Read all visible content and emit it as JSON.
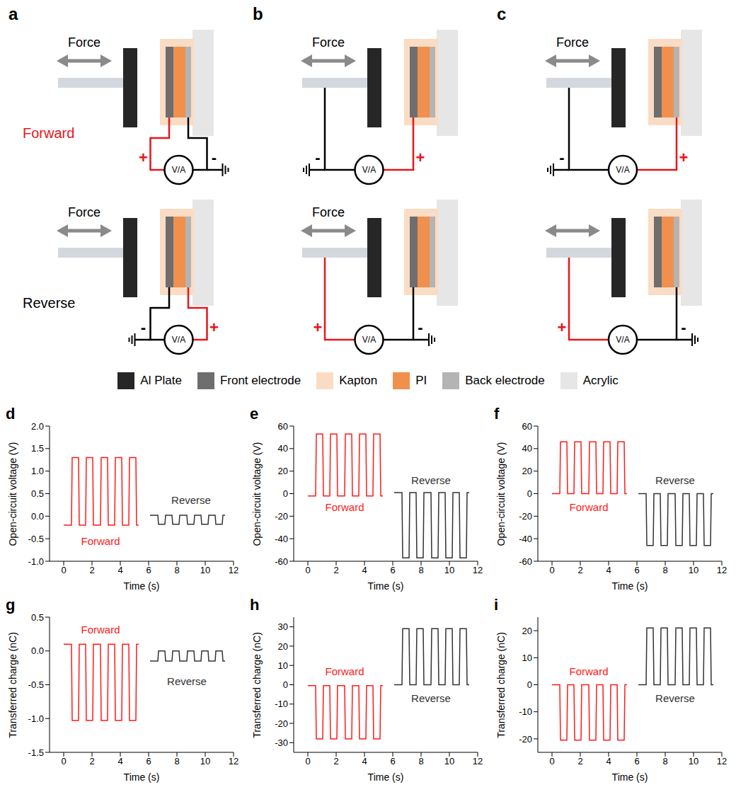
{
  "diagram": {
    "meter": "V/A",
    "plus": "+",
    "minus": "-",
    "panels": [
      {
        "letter": "a",
        "rows": [
          {
            "label": "Forward",
            "color": "#e8151b",
            "force": "Force",
            "plus": "Front electrode",
            "minus": "Back electrode"
          },
          {
            "label": "Reverse",
            "color": "#000000",
            "force": "Force",
            "plus": "Back electrode",
            "minus": "Front electrode"
          }
        ]
      },
      {
        "letter": "b",
        "rows": [
          {
            "force": "Force",
            "plus": "Front electrode",
            "minus": "Al Plate"
          },
          {
            "force": "Force",
            "plus": "Al Plate",
            "minus": "Front electrode"
          }
        ]
      },
      {
        "letter": "c",
        "rows": [
          {
            "force": "Force",
            "plus": "Back electrode",
            "minus": "Al Plate"
          },
          {
            "force": null,
            "plus": "Al Plate",
            "minus": "Back electrode"
          }
        ]
      }
    ],
    "legend": [
      {
        "label": "Al Plate",
        "color": "#262626"
      },
      {
        "label": "Front electrode",
        "color": "#6e6e6e"
      },
      {
        "label": "Kapton",
        "color": "#fadcc4"
      },
      {
        "label": "PI",
        "color": "#f0904c"
      },
      {
        "label": "Back electrode",
        "color": "#b4b4b4"
      },
      {
        "label": "Acrylic",
        "color": "#e6e6e6"
      }
    ]
  },
  "chart_data": [
    {
      "type": "line",
      "panel": "d",
      "xlabel": "Time (s)",
      "ylabel": "Open-circuit voltage (V)",
      "xlim": [
        -1,
        12
      ],
      "xticks": [
        0,
        2,
        4,
        6,
        8,
        10,
        12
      ],
      "ylim": [
        -1,
        2
      ],
      "yticks": [
        {
          "value": -1,
          "label": "-1.0"
        },
        {
          "value": -0.5,
          "label": "-0.5"
        },
        {
          "value": 0,
          "label": "0.0"
        },
        {
          "value": 0.5,
          "label": "0.5"
        },
        {
          "value": 1,
          "label": "1.0"
        },
        {
          "value": 1.5,
          "label": "1.5"
        },
        {
          "value": 2,
          "label": "2.0"
        }
      ],
      "series": [
        {
          "name": "Forward",
          "color": "#ff1a1a",
          "label_x": 2.6,
          "label_y": -0.55,
          "x": [
            0,
            0.55,
            0.6,
            1.05,
            1.1,
            1.55,
            1.6,
            2.05,
            2.1,
            2.6,
            2.65,
            3.1,
            3.15,
            3.6,
            3.65,
            4.1,
            4.15,
            4.6,
            4.65,
            5.1,
            5.15,
            5.3
          ],
          "values": [
            -0.2,
            -0.2,
            1.3,
            1.3,
            -0.2,
            -0.2,
            1.3,
            1.3,
            -0.2,
            -0.2,
            1.3,
            1.3,
            -0.2,
            -0.2,
            1.3,
            1.3,
            -0.2,
            -0.2,
            1.3,
            1.3,
            -0.2,
            -0.2
          ]
        },
        {
          "name": "Reverse",
          "color": "#333333",
          "label_x": 9,
          "label_y": 0.35,
          "x": [
            6.1,
            6.65,
            6.7,
            7.15,
            7.2,
            7.65,
            7.7,
            8.15,
            8.2,
            8.7,
            8.75,
            9.2,
            9.25,
            9.7,
            9.75,
            10.2,
            10.25,
            10.7,
            10.75,
            11.2,
            11.25,
            11.4
          ],
          "values": [
            0.02,
            0.02,
            -0.18,
            -0.18,
            0.02,
            0.02,
            -0.18,
            -0.18,
            0.02,
            0.02,
            -0.18,
            -0.18,
            0.02,
            0.02,
            -0.18,
            -0.18,
            0.02,
            0.02,
            -0.18,
            -0.18,
            0.02,
            0.02
          ]
        }
      ]
    },
    {
      "type": "line",
      "panel": "e",
      "xlabel": "Time (s)",
      "ylabel": "Open-circuit voltage (V)",
      "xlim": [
        -1,
        12
      ],
      "xticks": [
        0,
        2,
        4,
        6,
        8,
        10,
        12
      ],
      "ylim": [
        -60,
        60
      ],
      "yticks": [
        -60,
        -40,
        -20,
        0,
        20,
        40,
        60
      ],
      "series": [
        {
          "name": "Forward",
          "color": "#ff1a1a",
          "label_x": 2.6,
          "label_y": -12,
          "x": [
            0,
            0.55,
            0.6,
            1.05,
            1.1,
            1.55,
            1.6,
            2.05,
            2.1,
            2.6,
            2.65,
            3.1,
            3.15,
            3.6,
            3.65,
            4.1,
            4.15,
            4.6,
            4.65,
            5.1,
            5.15,
            5.3
          ],
          "values": [
            -2,
            -2,
            53,
            53,
            -2,
            -2,
            53,
            53,
            -2,
            -2,
            53,
            53,
            -2,
            -2,
            53,
            53,
            -2,
            -2,
            53,
            53,
            -2,
            -2
          ]
        },
        {
          "name": "Reverse",
          "color": "#333333",
          "label_x": 8.7,
          "label_y": 12,
          "x": [
            6.1,
            6.65,
            6.7,
            7.15,
            7.2,
            7.65,
            7.7,
            8.15,
            8.2,
            8.7,
            8.75,
            9.2,
            9.25,
            9.7,
            9.75,
            10.2,
            10.25,
            10.7,
            10.75,
            11.2,
            11.25,
            11.4
          ],
          "values": [
            1,
            1,
            -57,
            -57,
            1,
            1,
            -57,
            -57,
            1,
            1,
            -57,
            -57,
            1,
            1,
            -57,
            -57,
            1,
            1,
            -57,
            -57,
            1,
            1
          ]
        }
      ]
    },
    {
      "type": "line",
      "panel": "f",
      "xlabel": "Time (s)",
      "ylabel": "Open-circuit voltage (V)",
      "xlim": [
        -1,
        12
      ],
      "xticks": [
        0,
        2,
        4,
        6,
        8,
        10,
        12
      ],
      "ylim": [
        -60,
        60
      ],
      "yticks": [
        -60,
        -40,
        -20,
        0,
        20,
        40,
        60
      ],
      "series": [
        {
          "name": "Forward",
          "color": "#ff1a1a",
          "label_x": 2.6,
          "label_y": -12,
          "x": [
            0,
            0.55,
            0.6,
            1.05,
            1.1,
            1.55,
            1.6,
            2.05,
            2.1,
            2.6,
            2.65,
            3.1,
            3.15,
            3.6,
            3.65,
            4.1,
            4.15,
            4.6,
            4.65,
            5.1,
            5.15,
            5.3
          ],
          "values": [
            0,
            0,
            46,
            46,
            0,
            0,
            46,
            46,
            0,
            0,
            46,
            46,
            0,
            0,
            46,
            46,
            0,
            0,
            46,
            46,
            0,
            0
          ]
        },
        {
          "name": "Reverse",
          "color": "#333333",
          "label_x": 8.7,
          "label_y": 12,
          "x": [
            6.1,
            6.65,
            6.7,
            7.15,
            7.2,
            7.65,
            7.7,
            8.15,
            8.2,
            8.7,
            8.75,
            9.2,
            9.25,
            9.7,
            9.75,
            10.2,
            10.25,
            10.7,
            10.75,
            11.2,
            11.25,
            11.4
          ],
          "values": [
            0,
            0,
            -46,
            -46,
            0,
            0,
            -46,
            -46,
            0,
            0,
            -46,
            -46,
            0,
            0,
            -46,
            -46,
            0,
            0,
            -46,
            -46,
            0,
            0
          ]
        }
      ]
    },
    {
      "type": "line",
      "panel": "g",
      "xlabel": "Time (s)",
      "ylabel": "Transferred charge (nC)",
      "xlim": [
        -1,
        12
      ],
      "xticks": [
        0,
        2,
        4,
        6,
        8,
        10,
        12
      ],
      "ylim": [
        -1.5,
        0.5
      ],
      "yticks": [
        {
          "value": -1.5,
          "label": "-1.5"
        },
        {
          "value": -1,
          "label": "-1.0"
        },
        {
          "value": -0.5,
          "label": "-0.5"
        },
        {
          "value": 0,
          "label": "0.0"
        },
        {
          "value": 0.5,
          "label": "0.5"
        }
      ],
      "series": [
        {
          "name": "Forward",
          "color": "#ff1a1a",
          "label_x": 2.6,
          "label_y": 0.32,
          "x": [
            0,
            0.55,
            0.6,
            1.05,
            1.1,
            1.55,
            1.6,
            2.05,
            2.1,
            2.6,
            2.65,
            3.1,
            3.15,
            3.6,
            3.65,
            4.1,
            4.15,
            4.6,
            4.65,
            5.1,
            5.15,
            5.3
          ],
          "values": [
            0.1,
            0.1,
            -1.03,
            -1.03,
            0.1,
            0.1,
            -1.03,
            -1.03,
            0.1,
            0.1,
            -1.03,
            -1.03,
            0.1,
            0.1,
            -1.03,
            -1.03,
            0.1,
            0.1,
            -1.03,
            -1.03,
            0.1,
            0.1
          ]
        },
        {
          "name": "Reverse",
          "color": "#333333",
          "label_x": 8.7,
          "label_y": -0.45,
          "x": [
            6.1,
            6.65,
            6.7,
            7.15,
            7.2,
            7.65,
            7.7,
            8.15,
            8.2,
            8.7,
            8.75,
            9.2,
            9.25,
            9.7,
            9.75,
            10.2,
            10.25,
            10.7,
            10.75,
            11.2,
            11.25,
            11.4
          ],
          "values": [
            -0.15,
            -0.15,
            0,
            0,
            -0.15,
            -0.15,
            0,
            0,
            -0.15,
            -0.15,
            0,
            0,
            -0.15,
            -0.15,
            0,
            0,
            -0.15,
            -0.15,
            0,
            0,
            -0.15,
            -0.15
          ]
        }
      ]
    },
    {
      "type": "line",
      "panel": "h",
      "xlabel": "Time (s)",
      "ylabel": "Transferred charge (nC)",
      "xlim": [
        -1,
        12
      ],
      "xticks": [
        0,
        2,
        4,
        6,
        8,
        10,
        12
      ],
      "ylim": [
        -35,
        35
      ],
      "yticks": [
        -30,
        -20,
        -10,
        0,
        10,
        20,
        30
      ],
      "series": [
        {
          "name": "Forward",
          "color": "#ff1a1a",
          "label_x": 2.6,
          "label_y": 7,
          "x": [
            0,
            0.55,
            0.6,
            1.05,
            1.1,
            1.55,
            1.6,
            2.05,
            2.1,
            2.6,
            2.65,
            3.1,
            3.15,
            3.6,
            3.65,
            4.1,
            4.15,
            4.6,
            4.65,
            5.1,
            5.15,
            5.3
          ],
          "values": [
            -0.5,
            -0.5,
            -28,
            -28,
            -0.5,
            -0.5,
            -28,
            -28,
            -0.5,
            -0.5,
            -28,
            -28,
            -0.5,
            -0.5,
            -28,
            -28,
            -0.5,
            -0.5,
            -28,
            -28,
            -0.5,
            -0.5
          ]
        },
        {
          "name": "Reverse",
          "color": "#333333",
          "label_x": 8.7,
          "label_y": -7,
          "x": [
            6.1,
            6.65,
            6.7,
            7.15,
            7.2,
            7.65,
            7.7,
            8.15,
            8.2,
            8.7,
            8.75,
            9.2,
            9.25,
            9.7,
            9.75,
            10.2,
            10.25,
            10.7,
            10.75,
            11.2,
            11.25,
            11.4
          ],
          "values": [
            0,
            0,
            29,
            29,
            0,
            0,
            29,
            29,
            0,
            0,
            29,
            29,
            0,
            0,
            29,
            29,
            0,
            0,
            29,
            29,
            0,
            0
          ]
        }
      ]
    },
    {
      "type": "line",
      "panel": "i",
      "xlabel": "Time (s)",
      "ylabel": "Transferred charge (nC)",
      "xlim": [
        -1,
        12
      ],
      "xticks": [
        0,
        2,
        4,
        6,
        8,
        10,
        12
      ],
      "ylim": [
        -25,
        25
      ],
      "yticks": [
        -20,
        -10,
        0,
        10,
        20
      ],
      "series": [
        {
          "name": "Forward",
          "color": "#ff1a1a",
          "label_x": 2.6,
          "label_y": 5,
          "x": [
            0,
            0.55,
            0.6,
            1.05,
            1.1,
            1.55,
            1.6,
            2.05,
            2.1,
            2.6,
            2.65,
            3.1,
            3.15,
            3.6,
            3.65,
            4.1,
            4.15,
            4.6,
            4.65,
            5.1,
            5.15,
            5.3
          ],
          "values": [
            0,
            0,
            -20.5,
            -20.5,
            0,
            0,
            -20.5,
            -20.5,
            0,
            0,
            -20.5,
            -20.5,
            0,
            0,
            -20.5,
            -20.5,
            0,
            0,
            -20.5,
            -20.5,
            0,
            0
          ]
        },
        {
          "name": "Reverse",
          "color": "#333333",
          "label_x": 8.7,
          "label_y": -5,
          "x": [
            6.1,
            6.65,
            6.7,
            7.15,
            7.2,
            7.65,
            7.7,
            8.15,
            8.2,
            8.7,
            8.75,
            9.2,
            9.25,
            9.7,
            9.75,
            10.2,
            10.25,
            10.7,
            10.75,
            11.2,
            11.25,
            11.4
          ],
          "values": [
            0,
            0,
            21,
            21,
            0,
            0,
            21,
            21,
            0,
            0,
            21,
            21,
            0,
            0,
            21,
            21,
            0,
            0,
            21,
            21,
            0,
            0
          ]
        }
      ]
    }
  ]
}
